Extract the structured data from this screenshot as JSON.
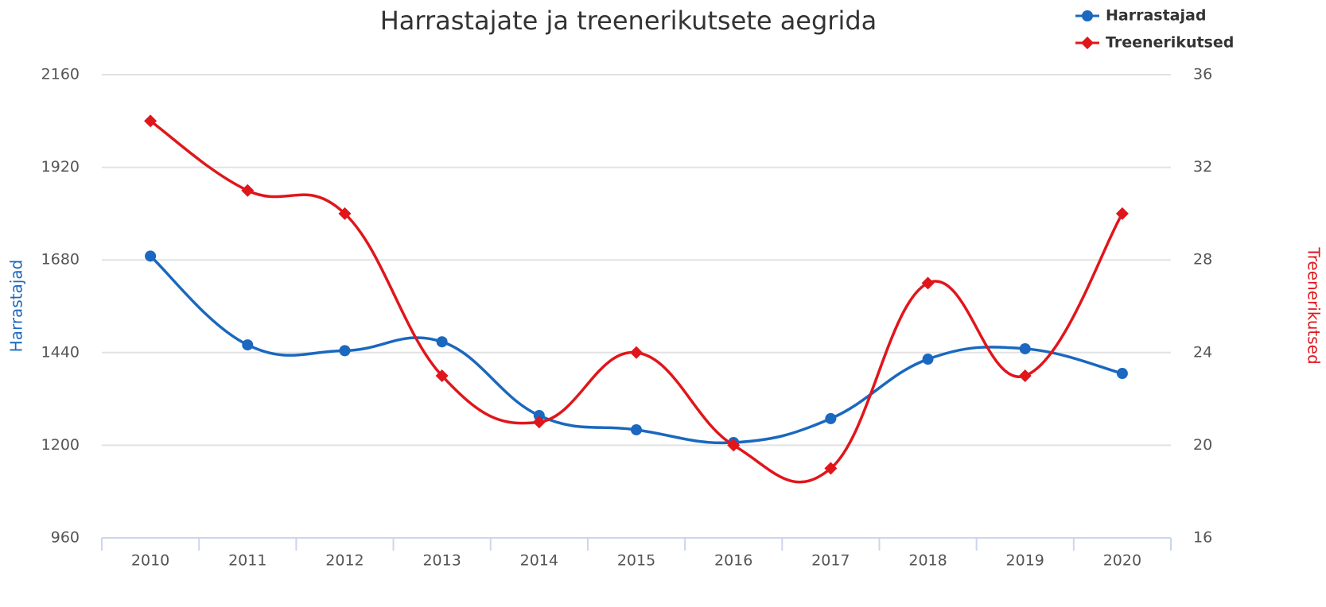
{
  "chart_data": {
    "type": "line",
    "title": "Harrastajate ja treenerikutsete aegrida",
    "categories": [
      "2010",
      "2011",
      "2012",
      "2013",
      "2014",
      "2015",
      "2016",
      "2017",
      "2018",
      "2019",
      "2020"
    ],
    "series": [
      {
        "name": "Harrastajad",
        "color": "#1a68bf",
        "marker": "circle",
        "axis": "y",
        "values": [
          1690,
          1460,
          1445,
          1468,
          1277,
          1240,
          1207,
          1269,
          1423,
          1450,
          1386
        ]
      },
      {
        "name": "Treenerikutsed",
        "color": "#e0161b",
        "marker": "diamond",
        "axis": "y2",
        "values": [
          34,
          31,
          30,
          23,
          21,
          24,
          20,
          19,
          27,
          23,
          30
        ]
      }
    ],
    "ylabel": "Harrastajad",
    "y2label": "Treenerikutsed",
    "ylim": [
      960,
      2160
    ],
    "yticks": [
      960,
      1200,
      1440,
      1680,
      1920,
      2160
    ],
    "y2lim": [
      16,
      36
    ],
    "y2ticks": [
      16,
      20,
      24,
      28,
      32,
      36
    ],
    "grid": true,
    "legend": "top-right"
  }
}
